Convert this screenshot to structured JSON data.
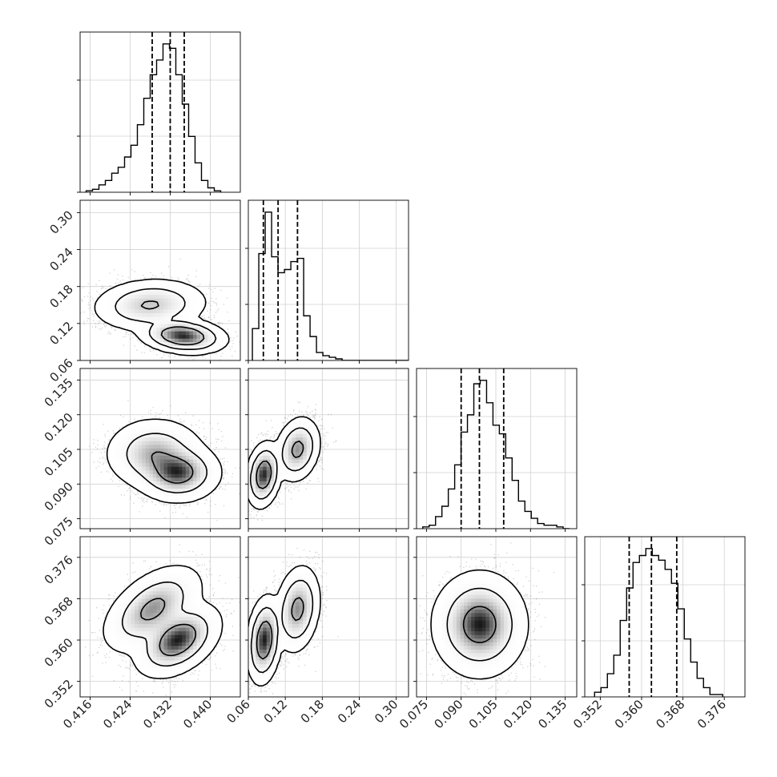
{
  "chart_data": {
    "type": "corner",
    "params": [
      {
        "range": [
          0.414,
          0.446
        ],
        "ticks": [
          0.416,
          0.424,
          0.432,
          0.44
        ],
        "tick_labels": [
          "0.416",
          "0.424",
          "0.432",
          "0.440"
        ],
        "quantiles": [
          0.4284,
          0.432,
          0.4348
        ],
        "hist": {
          "start": 0.4152,
          "width": 0.00128,
          "values": [
            1,
            2,
            5,
            8,
            13,
            17,
            24,
            32,
            46,
            64,
            80,
            90,
            101,
            98,
            80,
            60,
            38,
            20,
            8,
            3,
            1
          ]
        }
      },
      {
        "range": [
          0.06,
          0.32
        ],
        "ticks": [
          0.06,
          0.12,
          0.18,
          0.24,
          0.3
        ],
        "tick_labels": [
          "0.06",
          "0.12",
          "0.18",
          "0.24",
          "0.30"
        ],
        "quantiles": [
          0.0844,
          0.1083,
          0.1398
        ],
        "hist": {
          "start": 0.0666,
          "width": 0.0104,
          "values": [
            20,
            67,
            93,
            65,
            55,
            57,
            62,
            64,
            28,
            15,
            5,
            3,
            2,
            1,
            0,
            0,
            0,
            0,
            0,
            0,
            0,
            0,
            0,
            0,
            0
          ]
        }
      },
      {
        "range": [
          0.0707,
          0.14
        ],
        "ticks": [
          0.075,
          0.09,
          0.105,
          0.12,
          0.135
        ],
        "tick_labels": [
          "0.075",
          "0.090",
          "0.105",
          "0.120",
          "0.135"
        ],
        "quantiles": [
          0.09,
          0.0979,
          0.1084
        ],
        "hist": {
          "start": 0.0734,
          "width": 0.00276,
          "values": [
            1,
            2,
            7,
            13,
            23,
            37,
            56,
            66,
            84,
            86,
            73,
            60,
            55,
            41,
            28,
            16,
            10,
            6,
            3,
            2,
            2,
            1,
            0
          ]
        }
      },
      {
        "range": [
          0.349,
          0.38
        ],
        "ticks": [
          0.352,
          0.36,
          0.368,
          0.376
        ],
        "tick_labels": [
          "0.352",
          "0.360",
          "0.368",
          "0.376"
        ],
        "quantiles": [
          0.3576,
          0.3619,
          0.3668
        ],
        "hist": {
          "start": 0.3509,
          "width": 0.00124,
          "values": [
            2,
            4,
            10,
            18,
            33,
            47,
            58,
            61,
            64,
            61,
            59,
            55,
            49,
            38,
            25,
            15,
            8,
            4,
            1,
            1
          ]
        }
      }
    ],
    "hist_ylim_ratio": 1.08,
    "pairs": [
      {
        "row": 1,
        "col": 0,
        "blobs": [
          {
            "mean": [
              0.428,
              0.15
            ],
            "sd": [
              0.004,
              0.015
            ],
            "rho": 0.1,
            "w": 0.45
          },
          {
            "mean": [
              0.4345,
              0.1
            ],
            "sd": [
              0.003,
              0.01
            ],
            "rho": -0.2,
            "w": 0.55
          }
        ]
      },
      {
        "row": 2,
        "col": 0,
        "blobs": [
          {
            "mean": [
              0.429,
              0.103
            ],
            "sd": [
              0.0035,
              0.0055
            ],
            "rho": 0.0,
            "w": 0.45
          },
          {
            "mean": [
              0.4335,
              0.095
            ],
            "sd": [
              0.003,
              0.0045
            ],
            "rho": 0.0,
            "w": 0.55
          }
        ]
      },
      {
        "row": 2,
        "col": 1,
        "blobs": [
          {
            "mean": [
              0.085,
              0.094
            ],
            "sd": [
              0.01,
              0.005
            ],
            "rho": 0.2,
            "w": 0.55
          },
          {
            "mean": [
              0.14,
              0.105
            ],
            "sd": [
              0.013,
              0.005
            ],
            "rho": 0.2,
            "w": 0.45
          }
        ]
      },
      {
        "row": 3,
        "col": 0,
        "blobs": [
          {
            "mean": [
              0.4285,
              0.366
            ],
            "sd": [
              0.0035,
              0.003
            ],
            "rho": 0.5,
            "w": 0.45
          },
          {
            "mean": [
              0.4335,
              0.36
            ],
            "sd": [
              0.003,
              0.0025
            ],
            "rho": 0.4,
            "w": 0.55
          }
        ]
      },
      {
        "row": 3,
        "col": 1,
        "blobs": [
          {
            "mean": [
              0.086,
              0.36
            ],
            "sd": [
              0.01,
              0.003
            ],
            "rho": 0.2,
            "w": 0.55
          },
          {
            "mean": [
              0.14,
              0.366
            ],
            "sd": [
              0.013,
              0.003
            ],
            "rho": 0.2,
            "w": 0.45
          }
        ]
      },
      {
        "row": 3,
        "col": 2,
        "blobs": [
          {
            "mean": [
              0.098,
              0.363
            ],
            "sd": [
              0.007,
              0.0035
            ],
            "rho": 0.0,
            "w": 1.0
          }
        ]
      }
    ],
    "grid": true
  }
}
